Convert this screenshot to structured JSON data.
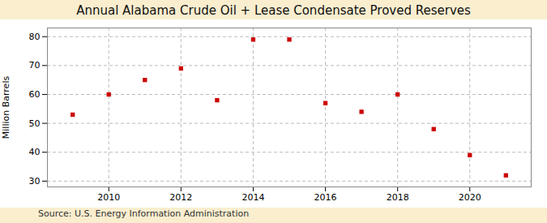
{
  "chart_data": {
    "type": "scatter",
    "title": "Annual Alabama Crude Oil + Lease Condensate Proved Reserves",
    "ylabel": "Million Barrels",
    "source": "Source: U.S. Energy Information Administration",
    "x": [
      2009,
      2010,
      2011,
      2012,
      2013,
      2014,
      2015,
      2016,
      2017,
      2018,
      2019,
      2020,
      2021
    ],
    "values": [
      53.0,
      60.0,
      65.0,
      69.0,
      58.0,
      79.0,
      79.0,
      57.0,
      54.0,
      60.0,
      48.0,
      39.0,
      32.0
    ],
    "color": "#cc0000",
    "marker": "square",
    "xlim": [
      2008.3,
      2021.7
    ],
    "xticks": [
      2010,
      2012,
      2014,
      2016,
      2018,
      2020
    ],
    "ylim": [
      28,
      83
    ],
    "yticks": [
      30,
      40,
      50,
      60,
      70,
      80
    ],
    "grid": true
  }
}
